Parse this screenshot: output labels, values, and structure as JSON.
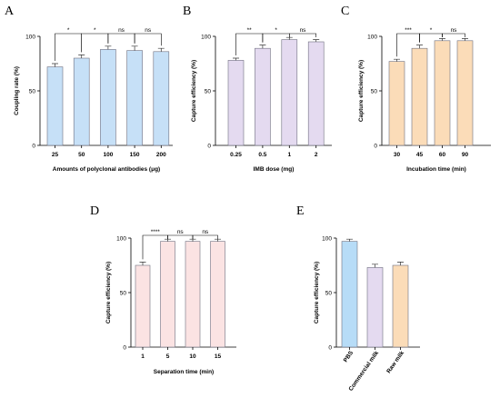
{
  "chart_data": [
    {
      "type": "bar",
      "panel": "A",
      "categories": [
        "25",
        "50",
        "100",
        "150",
        "200"
      ],
      "values": [
        72,
        80,
        88,
        87,
        86
      ],
      "errors": [
        3,
        3,
        3,
        4,
        3
      ],
      "xlabel": "Amounts of polyclonal antibodies (μg)",
      "ylabel": "Coupling rate (%)",
      "ylim": [
        0,
        100
      ],
      "yticks": [
        "0",
        "50",
        "100"
      ],
      "bar_colors": [
        "#c6e0f7"
      ],
      "significance": [
        {
          "from": 0,
          "to": 1,
          "label": "*"
        },
        {
          "from": 1,
          "to": 2,
          "label": "*"
        },
        {
          "from": 2,
          "to": 3,
          "label": "ns"
        },
        {
          "from": 3,
          "to": 4,
          "label": "ns"
        }
      ]
    },
    {
      "type": "bar",
      "panel": "B",
      "categories": [
        "0.25",
        "0.5",
        "1",
        "2"
      ],
      "values": [
        78,
        89,
        97,
        95
      ],
      "errors": [
        2,
        3,
        2,
        2
      ],
      "xlabel": "IMB dose (mg)",
      "ylabel": "Capture efficiency (%)",
      "ylim": [
        0,
        100
      ],
      "yticks": [
        "0",
        "50",
        "100"
      ],
      "bar_colors": [
        "#e4daf0"
      ],
      "significance": [
        {
          "from": 0,
          "to": 1,
          "label": "**"
        },
        {
          "from": 1,
          "to": 2,
          "label": "*"
        },
        {
          "from": 2,
          "to": 3,
          "label": "ns"
        }
      ]
    },
    {
      "type": "bar",
      "panel": "C",
      "categories": [
        "30",
        "45",
        "60",
        "90"
      ],
      "values": [
        77,
        89,
        96,
        96
      ],
      "errors": [
        2,
        3,
        2,
        2
      ],
      "xlabel": "Incubation time (min)",
      "ylabel": "Capture efficiency (%)",
      "ylim": [
        0,
        100
      ],
      "yticks": [
        "0",
        "50",
        "100"
      ],
      "bar_colors": [
        "#fbdcb8"
      ],
      "significance": [
        {
          "from": 0,
          "to": 1,
          "label": "***"
        },
        {
          "from": 1,
          "to": 2,
          "label": "*"
        },
        {
          "from": 2,
          "to": 3,
          "label": "ns"
        }
      ]
    },
    {
      "type": "bar",
      "panel": "D",
      "categories": [
        "1",
        "5",
        "10",
        "15"
      ],
      "values": [
        75,
        97,
        97,
        97
      ],
      "errors": [
        3,
        2,
        2,
        2
      ],
      "xlabel": "Separation time (min)",
      "ylabel": "Capture efficiency (%)",
      "ylim": [
        0,
        100
      ],
      "yticks": [
        "0",
        "50",
        "100"
      ],
      "bar_colors": [
        "#fbe3e3"
      ],
      "significance": [
        {
          "from": 0,
          "to": 1,
          "label": "****"
        },
        {
          "from": 1,
          "to": 2,
          "label": "ns"
        },
        {
          "from": 2,
          "to": 3,
          "label": "ns"
        }
      ]
    },
    {
      "type": "bar",
      "panel": "E",
      "categories": [
        "PBS",
        "Commercial milk",
        "Raw milk"
      ],
      "values": [
        97,
        73,
        75
      ],
      "errors": [
        2,
        3,
        3
      ],
      "xlabel": "",
      "ylabel": "Capture efficiency (%)",
      "ylim": [
        0,
        100
      ],
      "yticks": [
        "0",
        "50",
        "100"
      ],
      "bar_colors": [
        "#b7dcf7",
        "#e4daf0",
        "#fbdcb8"
      ],
      "significance": []
    }
  ]
}
